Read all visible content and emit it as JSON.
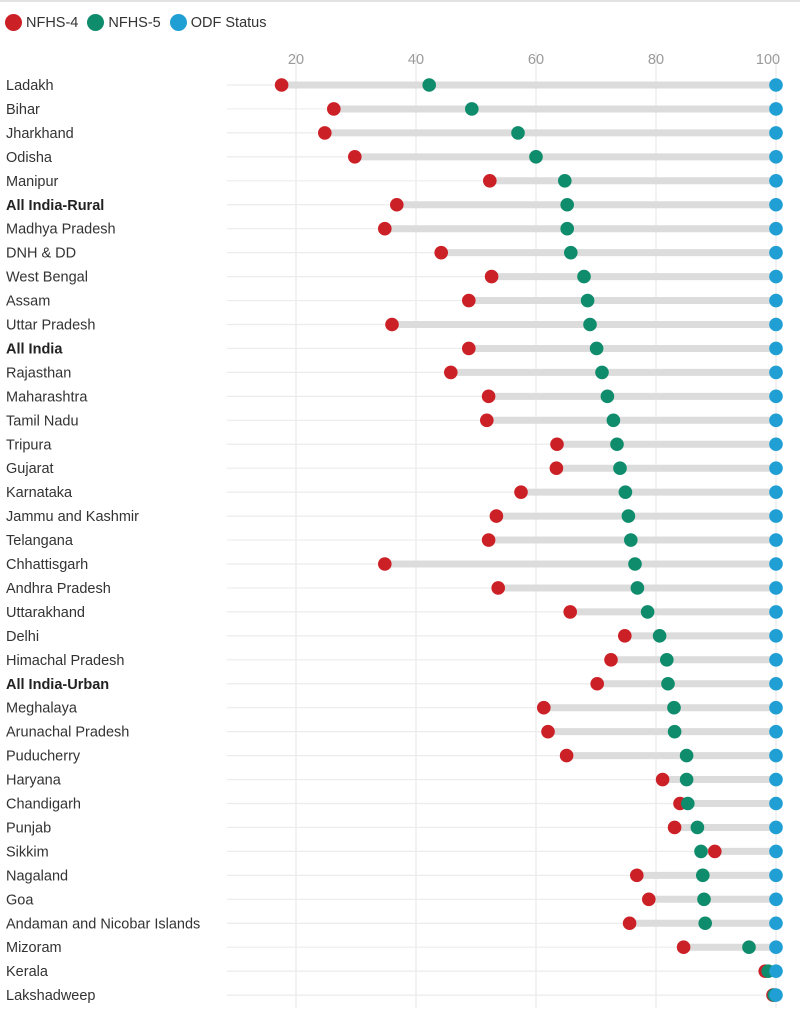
{
  "legend": [
    {
      "label": "NFHS-4",
      "color": "#cc2027"
    },
    {
      "label": "NFHS-5",
      "color": "#0f8c6c"
    },
    {
      "label": "ODF Status",
      "color": "#1f9fd4"
    }
  ],
  "chart_data": {
    "type": "dumbbell",
    "title": "",
    "xlabel": "",
    "ylabel": "",
    "xlim": [
      10,
      100
    ],
    "xticks": [
      "20",
      "40",
      "60",
      "80",
      "100"
    ],
    "xtick_values": [
      20,
      40,
      60,
      80,
      100
    ],
    "grid": true,
    "legend_position": "top-left",
    "colors": {
      "nfhs4": "#cc2027",
      "nfhs5": "#0f8c6c",
      "odf": "#1f9fd4",
      "bar": "#dcdcdc"
    },
    "series": [
      {
        "name": "NFHS-4"
      },
      {
        "name": "NFHS-5"
      },
      {
        "name": "ODF Status"
      }
    ],
    "rows": [
      {
        "label": "Ladakh",
        "bold": false,
        "nfhs4": 17.6,
        "nfhs5": 42.2,
        "odf": 100
      },
      {
        "label": "Bihar",
        "bold": false,
        "nfhs4": 26.3,
        "nfhs5": 49.3,
        "odf": 100
      },
      {
        "label": "Jharkhand",
        "bold": false,
        "nfhs4": 24.8,
        "nfhs5": 57.0,
        "odf": 100
      },
      {
        "label": "Odisha",
        "bold": false,
        "nfhs4": 29.8,
        "nfhs5": 60.0,
        "odf": 100
      },
      {
        "label": "Manipur",
        "bold": false,
        "nfhs4": 52.3,
        "nfhs5": 64.8,
        "odf": 100
      },
      {
        "label": "All India-Rural",
        "bold": true,
        "nfhs4": 36.8,
        "nfhs5": 65.2,
        "odf": 100
      },
      {
        "label": "Madhya Pradesh",
        "bold": false,
        "nfhs4": 34.8,
        "nfhs5": 65.2,
        "odf": 100
      },
      {
        "label": "DNH & DD",
        "bold": false,
        "nfhs4": 44.2,
        "nfhs5": 65.8,
        "odf": 100
      },
      {
        "label": "West Bengal",
        "bold": false,
        "nfhs4": 52.6,
        "nfhs5": 68.0,
        "odf": 100
      },
      {
        "label": "Assam",
        "bold": false,
        "nfhs4": 48.8,
        "nfhs5": 68.6,
        "odf": 100
      },
      {
        "label": "Uttar Pradesh",
        "bold": false,
        "nfhs4": 36.0,
        "nfhs5": 69.0,
        "odf": 100
      },
      {
        "label": "All India",
        "bold": true,
        "nfhs4": 48.8,
        "nfhs5": 70.1,
        "odf": 100
      },
      {
        "label": "Rajasthan",
        "bold": false,
        "nfhs4": 45.8,
        "nfhs5": 71.0,
        "odf": 100
      },
      {
        "label": "Maharashtra",
        "bold": false,
        "nfhs4": 52.1,
        "nfhs5": 71.9,
        "odf": 100
      },
      {
        "label": "Tamil Nadu",
        "bold": false,
        "nfhs4": 51.8,
        "nfhs5": 72.9,
        "odf": 100
      },
      {
        "label": "Tripura",
        "bold": false,
        "nfhs4": 63.5,
        "nfhs5": 73.5,
        "odf": 100
      },
      {
        "label": "Gujarat",
        "bold": false,
        "nfhs4": 63.4,
        "nfhs5": 74.0,
        "odf": 100
      },
      {
        "label": "Karnataka",
        "bold": false,
        "nfhs4": 57.5,
        "nfhs5": 74.9,
        "odf": 100
      },
      {
        "label": "Jammu and Kashmir",
        "bold": false,
        "nfhs4": 53.4,
        "nfhs5": 75.4,
        "odf": 100
      },
      {
        "label": "Telangana",
        "bold": false,
        "nfhs4": 52.1,
        "nfhs5": 75.8,
        "odf": 100
      },
      {
        "label": "Chhattisgarh",
        "bold": false,
        "nfhs4": 34.8,
        "nfhs5": 76.5,
        "odf": 100
      },
      {
        "label": "Andhra Pradesh",
        "bold": false,
        "nfhs4": 53.7,
        "nfhs5": 76.9,
        "odf": 100
      },
      {
        "label": "Uttarakhand",
        "bold": false,
        "nfhs4": 65.7,
        "nfhs5": 78.6,
        "odf": 100
      },
      {
        "label": "Delhi",
        "bold": false,
        "nfhs4": 74.8,
        "nfhs5": 80.6,
        "odf": 100
      },
      {
        "label": "Himachal Pradesh",
        "bold": false,
        "nfhs4": 72.5,
        "nfhs5": 81.8,
        "odf": 100
      },
      {
        "label": "All India-Urban",
        "bold": true,
        "nfhs4": 70.2,
        "nfhs5": 82.0,
        "odf": 100
      },
      {
        "label": "Meghalaya",
        "bold": false,
        "nfhs4": 61.3,
        "nfhs5": 83.0,
        "odf": 100
      },
      {
        "label": "Arunachal Pradesh",
        "bold": false,
        "nfhs4": 62.0,
        "nfhs5": 83.1,
        "odf": 100
      },
      {
        "label": "Puducherry",
        "bold": false,
        "nfhs4": 65.1,
        "nfhs5": 85.1,
        "odf": 100
      },
      {
        "label": "Haryana",
        "bold": false,
        "nfhs4": 81.1,
        "nfhs5": 85.1,
        "odf": 100
      },
      {
        "label": "Chandigarh",
        "bold": false,
        "nfhs4": 84.0,
        "nfhs5": 85.3,
        "odf": 100
      },
      {
        "label": "Punjab",
        "bold": false,
        "nfhs4": 83.1,
        "nfhs5": 86.9,
        "odf": 100
      },
      {
        "label": "Sikkim",
        "bold": false,
        "nfhs4": 89.8,
        "nfhs5": 87.5,
        "odf": 100
      },
      {
        "label": "Nagaland",
        "bold": false,
        "nfhs4": 76.8,
        "nfhs5": 87.8,
        "odf": 100
      },
      {
        "label": "Goa",
        "bold": false,
        "nfhs4": 78.8,
        "nfhs5": 88.0,
        "odf": 100
      },
      {
        "label": "Andaman and Nicobar Islands",
        "bold": false,
        "nfhs4": 75.6,
        "nfhs5": 88.2,
        "odf": 100
      },
      {
        "label": "Mizoram",
        "bold": false,
        "nfhs4": 84.6,
        "nfhs5": 95.5,
        "odf": 100
      },
      {
        "label": "Kerala",
        "bold": false,
        "nfhs4": 98.2,
        "nfhs5": 98.7,
        "odf": 100
      },
      {
        "label": "Lakshadweep",
        "bold": false,
        "nfhs4": 99.5,
        "nfhs5": 99.7,
        "odf": 100
      }
    ]
  }
}
